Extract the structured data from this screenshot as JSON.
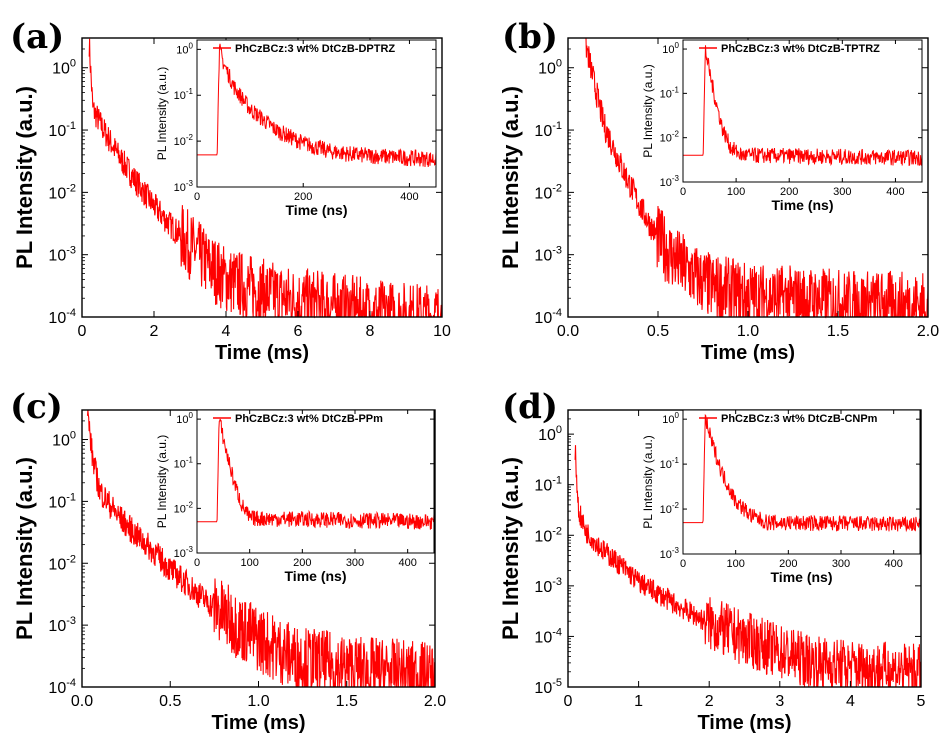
{
  "colors": {
    "series": "#ff0000",
    "axis": "#000000"
  },
  "chart_data": [
    {
      "panel": "(a)",
      "type": "line",
      "xlabel": "Time (ms)",
      "ylabel": "PL Intensity (a.u.)",
      "xlim": [
        0,
        10
      ],
      "xticks": [
        0,
        2,
        4,
        6,
        8,
        10
      ],
      "ylim": [
        0.0001,
        3
      ],
      "yscale": "log",
      "yexp": [
        -4,
        -3,
        -2,
        -1,
        0
      ],
      "peak": {
        "x": 0.2,
        "y": 2.5
      },
      "series": [
        {
          "values": [
            [
              0.2,
              2.5
            ],
            [
              0.3,
              0.22
            ],
            [
              0.6,
              0.1
            ],
            [
              1.0,
              0.04
            ],
            [
              1.5,
              0.015
            ],
            [
              2.0,
              0.006
            ],
            [
              2.5,
              0.0028
            ],
            [
              3.0,
              0.0014
            ],
            [
              3.5,
              0.0007
            ],
            [
              4.0,
              0.0004
            ],
            [
              5.0,
              0.00025
            ],
            [
              6.0,
              0.00018
            ],
            [
              7.0,
              0.00015
            ],
            [
              8.0,
              0.00012
            ],
            [
              9.5,
              0.0001
            ]
          ]
        }
      ],
      "inset": {
        "type": "line",
        "legend": "PhCzBCz:3 wt% DtCzB-DPTRZ",
        "xlabel": "Time (ns)",
        "ylabel": "PL Intensity (a.u.)",
        "xlim": [
          0,
          450
        ],
        "xticks": [
          0,
          200,
          400
        ],
        "ylim": [
          0.001,
          1.6
        ],
        "yscale": "log",
        "yexp": [
          -3,
          -2,
          -1,
          0
        ],
        "series": [
          {
            "values": [
              [
                0,
                0.005
              ],
              [
                38,
                0.005
              ],
              [
                42,
                1.0
              ],
              [
                50,
                0.5
              ],
              [
                70,
                0.15
              ],
              [
                100,
                0.05
              ],
              [
                150,
                0.017
              ],
              [
                200,
                0.009
              ],
              [
                250,
                0.006
              ],
              [
                300,
                0.005
              ],
              [
                450,
                0.004
              ]
            ]
          }
        ]
      }
    },
    {
      "panel": "(b)",
      "type": "line",
      "xlabel": "Time (ms)",
      "ylabel": "PL Intensity (a.u.)",
      "xlim": [
        0,
        2.0
      ],
      "xticks": [
        0.0,
        0.5,
        1.0,
        1.5,
        2.0
      ],
      "ylim": [
        0.0001,
        3
      ],
      "yscale": "log",
      "yexp": [
        -4,
        -3,
        -2,
        -1,
        0
      ],
      "peak": {
        "x": 0.1,
        "y": 2.3
      },
      "series": [
        {
          "values": [
            [
              0.1,
              2.3
            ],
            [
              0.15,
              0.5
            ],
            [
              0.2,
              0.12
            ],
            [
              0.3,
              0.025
            ],
            [
              0.4,
              0.006
            ],
            [
              0.5,
              0.0018
            ],
            [
              0.6,
              0.0008
            ],
            [
              0.7,
              0.00045
            ],
            [
              0.8,
              0.0003
            ],
            [
              1.0,
              0.00022
            ],
            [
              1.5,
              0.00017
            ],
            [
              2.0,
              0.00015
            ]
          ]
        }
      ],
      "inset": {
        "type": "line",
        "legend": "PhCzBCz:3 wt% DtCzB-TPTRZ",
        "xlabel": "Time (ns)",
        "ylabel": "PL Intensity (a.u.)",
        "xlim": [
          0,
          450
        ],
        "xticks": [
          0,
          100,
          200,
          300,
          400
        ],
        "ylim": [
          0.001,
          1.6
        ],
        "yscale": "log",
        "yexp": [
          -3,
          -2,
          -1,
          0
        ],
        "series": [
          {
            "values": [
              [
                0,
                0.004
              ],
              [
                38,
                0.004
              ],
              [
                42,
                1.0
              ],
              [
                50,
                0.3
              ],
              [
                60,
                0.08
              ],
              [
                75,
                0.015
              ],
              [
                90,
                0.006
              ],
              [
                110,
                0.004
              ],
              [
                450,
                0.0035
              ]
            ]
          }
        ]
      }
    },
    {
      "panel": "(c)",
      "type": "line",
      "xlabel": "Time (ms)",
      "ylabel": "PL Intensity (a.u.)",
      "xlim": [
        0,
        2.0
      ],
      "xticks": [
        0.0,
        0.5,
        1.0,
        1.5,
        2.0
      ],
      "ylim": [
        0.0001,
        3
      ],
      "yscale": "log",
      "yexp": [
        -4,
        -3,
        -2,
        -1,
        0
      ],
      "peak": {
        "x": 0.03,
        "y": 3.0
      },
      "series": [
        {
          "values": [
            [
              0.03,
              3.0
            ],
            [
              0.06,
              0.5
            ],
            [
              0.1,
              0.15
            ],
            [
              0.2,
              0.06
            ],
            [
              0.3,
              0.03
            ],
            [
              0.4,
              0.016
            ],
            [
              0.5,
              0.008
            ],
            [
              0.6,
              0.0045
            ],
            [
              0.7,
              0.0025
            ],
            [
              0.8,
              0.0015
            ],
            [
              0.9,
              0.0009
            ],
            [
              1.0,
              0.0006
            ],
            [
              1.2,
              0.0003
            ],
            [
              1.5,
              0.0002
            ],
            [
              2.0,
              0.00015
            ]
          ]
        }
      ],
      "inset": {
        "type": "line",
        "legend": "PhCzBCz:3 wt% DtCzB-PPm",
        "xlabel": "Time (ns)",
        "ylabel": "PL Intensity (a.u.)",
        "xlim": [
          0,
          450
        ],
        "xticks": [
          0,
          100,
          200,
          300,
          400
        ],
        "ylim": [
          0.001,
          1.6
        ],
        "yscale": "log",
        "yexp": [
          -3,
          -2,
          -1,
          0
        ],
        "series": [
          {
            "values": [
              [
                0,
                0.005
              ],
              [
                38,
                0.005
              ],
              [
                42,
                1.0
              ],
              [
                55,
                0.2
              ],
              [
                70,
                0.04
              ],
              [
                85,
                0.012
              ],
              [
                100,
                0.006
              ],
              [
                450,
                0.005
              ]
            ]
          }
        ]
      }
    },
    {
      "panel": "(d)",
      "type": "line",
      "xlabel": "Time (ms)",
      "ylabel": "PL Intensity (a.u.)",
      "xlim": [
        0,
        5
      ],
      "xticks": [
        0,
        1,
        2,
        3,
        4,
        5
      ],
      "ylim": [
        1e-05,
        3
      ],
      "yscale": "log",
      "yexp": [
        -5,
        -4,
        -3,
        -2,
        -1,
        0
      ],
      "peak": {
        "x": 0.1,
        "y": 0.5
      },
      "series": [
        {
          "values": [
            [
              0.1,
              0.5
            ],
            [
              0.15,
              0.03
            ],
            [
              0.25,
              0.012
            ],
            [
              0.5,
              0.005
            ],
            [
              0.8,
              0.0022
            ],
            [
              1.0,
              0.0012
            ],
            [
              1.5,
              0.00045
            ],
            [
              2.0,
              0.00018
            ],
            [
              2.5,
              9e-05
            ],
            [
              3.0,
              5e-05
            ],
            [
              3.5,
              3e-05
            ],
            [
              4.0,
              2.5e-05
            ],
            [
              5.0,
              2e-05
            ]
          ]
        }
      ],
      "inset": {
        "type": "line",
        "legend": "PhCzBCz:3 wt% DtCzB-CNPm",
        "xlabel": "Time (ns)",
        "ylabel": "PL Intensity (a.u.)",
        "xlim": [
          0,
          450
        ],
        "xticks": [
          0,
          100,
          200,
          300,
          400
        ],
        "ylim": [
          0.001,
          1.6
        ],
        "yscale": "log",
        "yexp": [
          -3,
          -2,
          -1,
          0
        ],
        "series": [
          {
            "values": [
              [
                0,
                0.005
              ],
              [
                38,
                0.005
              ],
              [
                42,
                1.0
              ],
              [
                55,
                0.3
              ],
              [
                75,
                0.06
              ],
              [
                100,
                0.015
              ],
              [
                130,
                0.007
              ],
              [
                160,
                0.005
              ],
              [
                450,
                0.0045
              ]
            ]
          }
        ]
      }
    }
  ]
}
